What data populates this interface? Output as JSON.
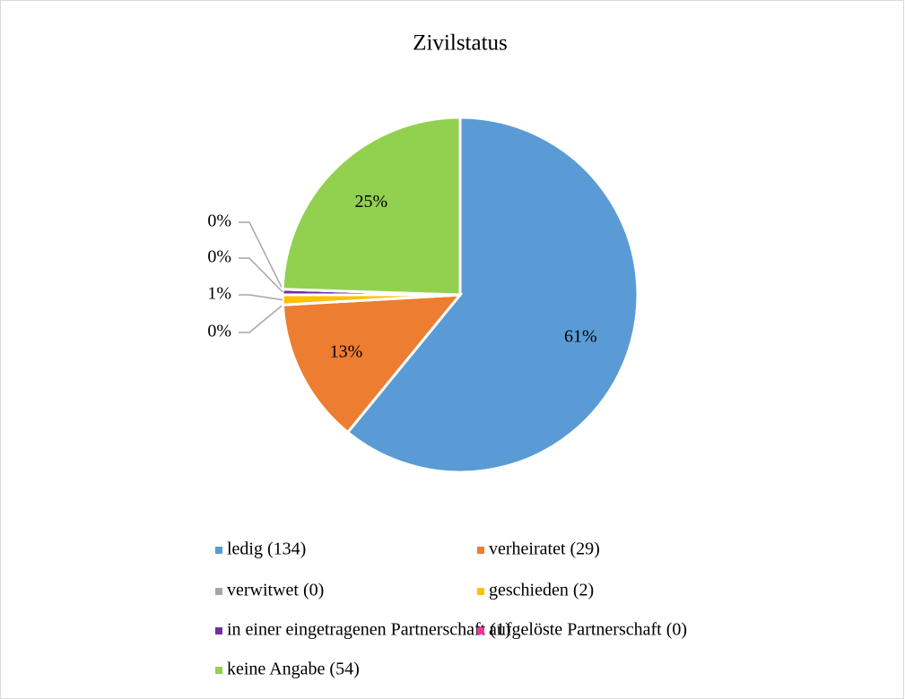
{
  "chart_data": {
    "type": "pie",
    "title": "Zivilstatus",
    "categories": [
      "ledig (134)",
      "verheiratet (29)",
      "verwitwet (0)",
      "geschieden (2)",
      "in einer eingetragenen Partnerschaft (1)",
      "aufgelöste Partnerschaft (0)",
      "keine Angabe (54)"
    ],
    "values": [
      60.9,
      13.2,
      0,
      0.9,
      0.5,
      0,
      24.5
    ],
    "value_labels": [
      "61%",
      "13%",
      "0%",
      "1%",
      "0%",
      "0%",
      "25%"
    ],
    "colors": [
      "#5b9bd5",
      "#ed7d31",
      "#a5a5a5",
      "#ffc000",
      "#7030a0",
      "#ff3399",
      "#92d050"
    ],
    "legend": "bottom"
  }
}
